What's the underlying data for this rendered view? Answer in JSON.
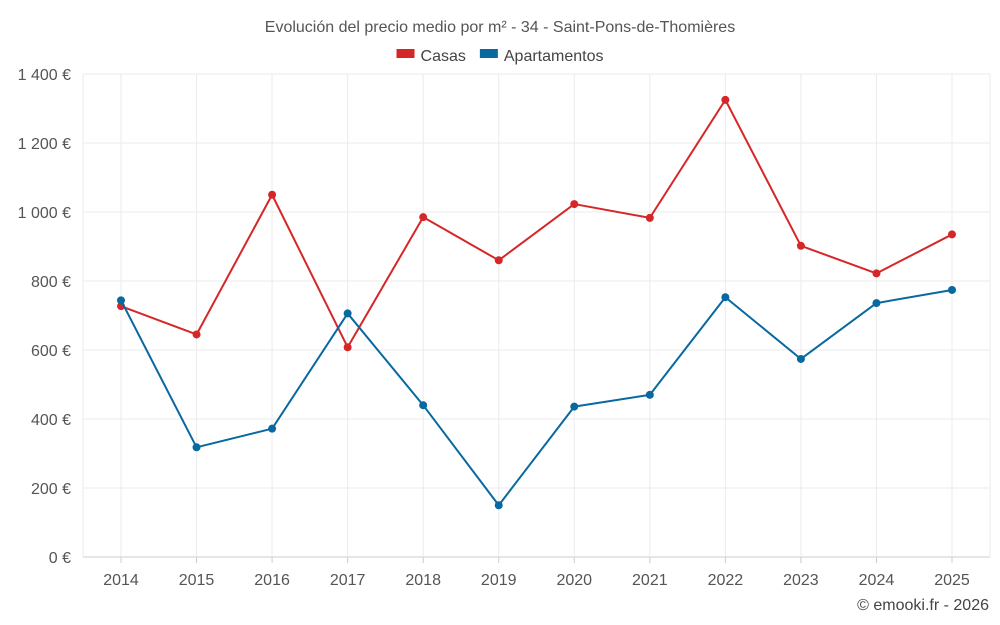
{
  "chart_data": {
    "type": "line",
    "title": "Evolución del precio medio por m² - 34 - Saint-Pons-de-Thomières",
    "categories": [
      "2014",
      "2015",
      "2016",
      "2017",
      "2018",
      "2019",
      "2020",
      "2021",
      "2022",
      "2023",
      "2024",
      "2025"
    ],
    "series": [
      {
        "name": "Casas",
        "color": "#d62728",
        "values": [
          727,
          645,
          1050,
          608,
          985,
          860,
          1023,
          983,
          1325,
          902,
          822,
          935
        ]
      },
      {
        "name": "Apartamentos",
        "color": "#0868a0",
        "values": [
          744,
          318,
          372,
          706,
          440,
          150,
          436,
          470,
          753,
          574,
          736,
          774
        ]
      }
    ],
    "ylim": [
      0,
      1400
    ],
    "yticks": [
      0,
      200,
      400,
      600,
      800,
      1000,
      1200,
      1400
    ],
    "ytick_labels": [
      "0 €",
      "200 €",
      "400 €",
      "600 €",
      "800 €",
      "1 000 €",
      "1 200 €",
      "1 400 €"
    ],
    "xlabel": "",
    "ylabel": "",
    "grid": true,
    "legend_position": "top-center",
    "credit": "© emooki.fr - 2026"
  }
}
